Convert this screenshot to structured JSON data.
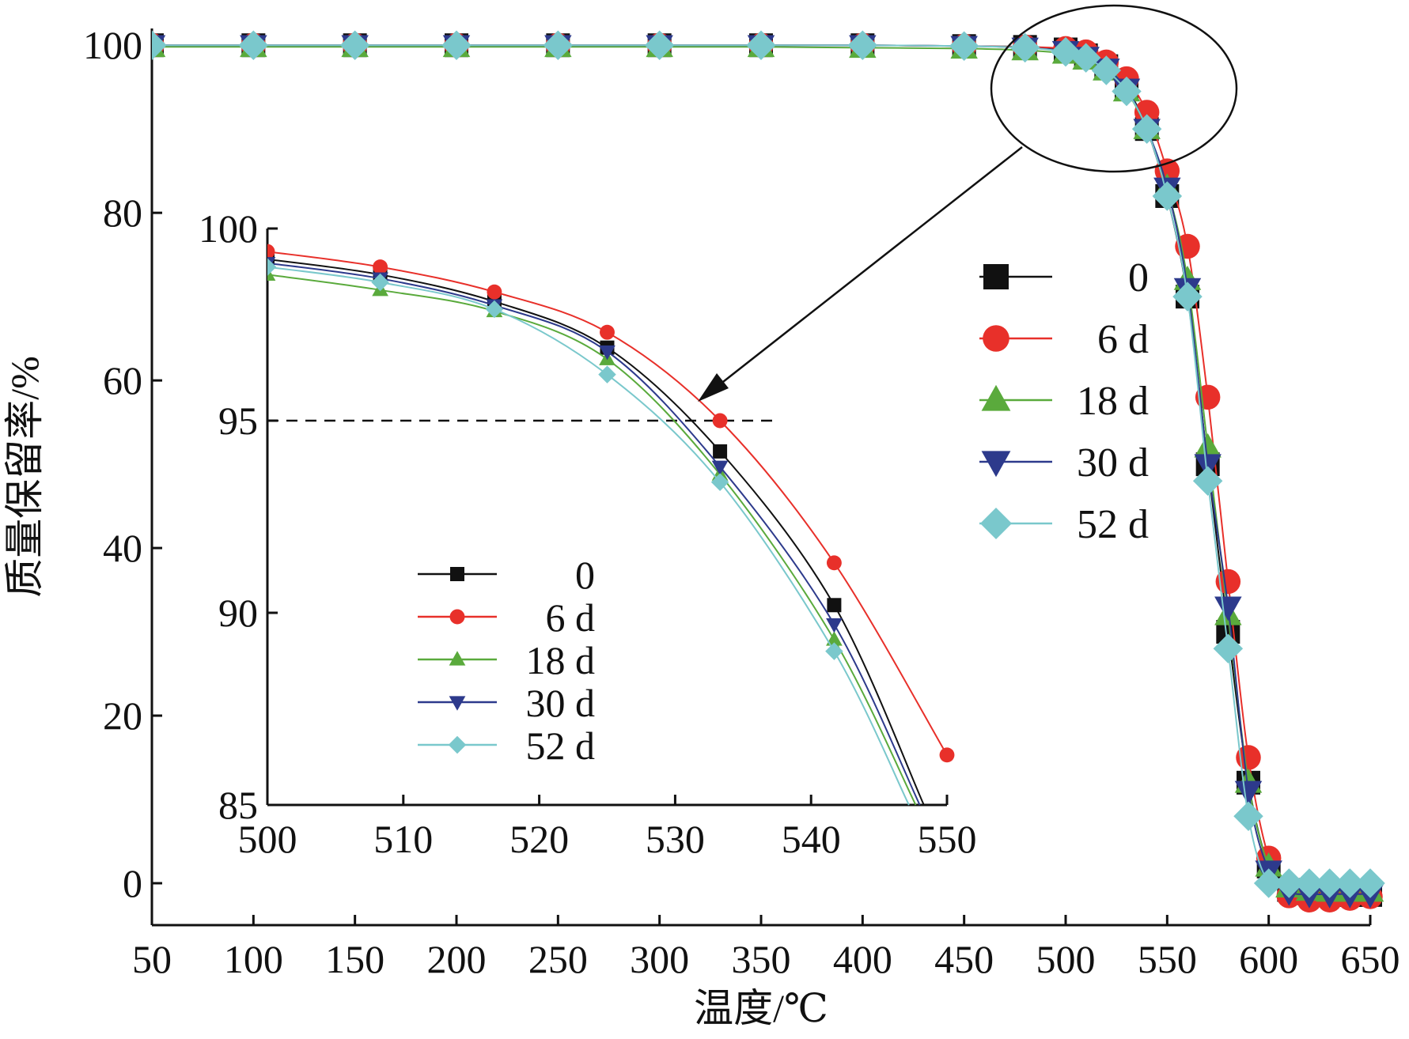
{
  "chart_data": [
    {
      "type": "line",
      "xlabel": "温度/℃",
      "ylabel": "质量保留率/%",
      "xlim": [
        50,
        650
      ],
      "ylim": [
        -5,
        102
      ],
      "xticks": [
        50,
        100,
        150,
        200,
        250,
        300,
        350,
        400,
        450,
        500,
        550,
        600,
        650
      ],
      "yticks": [
        0,
        20,
        40,
        60,
        80,
        100
      ],
      "legend_position": "right-middle",
      "series": [
        {
          "name": "0",
          "color": "#111111",
          "marker": "square",
          "x": [
            50,
            100,
            150,
            200,
            250,
            300,
            350,
            400,
            450,
            480,
            500,
            510,
            520,
            530,
            540,
            550,
            560,
            570,
            580,
            590,
            600,
            610,
            620,
            630,
            640,
            650
          ],
          "y": [
            100,
            100,
            100,
            100,
            100,
            100,
            100,
            100,
            99.9,
            99.8,
            99.5,
            98.8,
            97.5,
            95,
            90,
            82,
            70,
            50,
            30,
            12,
            2,
            -0.8,
            -1.2,
            -1.3,
            -1.4,
            -1.4
          ]
        },
        {
          "name": "6 d",
          "color": "#e8302a",
          "marker": "circle",
          "x": [
            50,
            100,
            150,
            200,
            250,
            300,
            350,
            400,
            450,
            480,
            500,
            510,
            520,
            530,
            540,
            550,
            560,
            570,
            580,
            590,
            600,
            610,
            620,
            630,
            640,
            650
          ],
          "y": [
            100,
            100,
            100,
            100,
            100,
            100,
            100,
            100,
            99.9,
            99.8,
            99.6,
            99.2,
            98,
            96,
            92,
            85,
            76,
            58,
            36,
            15,
            3,
            -1.5,
            -2.0,
            -2.0,
            -1.8,
            -1.6
          ]
        },
        {
          "name": "18 d",
          "color": "#5aaa3c",
          "marker": "triangle-up",
          "x": [
            50,
            100,
            150,
            200,
            250,
            300,
            350,
            400,
            450,
            480,
            500,
            510,
            520,
            530,
            540,
            550,
            560,
            570,
            580,
            590,
            600,
            610,
            620,
            630,
            640,
            650
          ],
          "y": [
            99.8,
            99.8,
            99.8,
            99.8,
            99.8,
            99.8,
            99.8,
            99.7,
            99.6,
            99.4,
            99,
            98.3,
            97,
            94.5,
            90,
            83,
            72,
            52,
            32,
            12,
            2,
            -0.5,
            -0.9,
            -1.0,
            -1.0,
            -1.0
          ]
        },
        {
          "name": "30 d",
          "color": "#2d3a8c",
          "marker": "triangle-down",
          "x": [
            50,
            100,
            150,
            200,
            250,
            300,
            350,
            400,
            450,
            480,
            500,
            510,
            520,
            530,
            540,
            550,
            560,
            570,
            580,
            590,
            600,
            610,
            620,
            630,
            640,
            650
          ],
          "y": [
            100,
            100,
            100,
            100,
            100,
            100,
            100,
            100,
            99.9,
            99.7,
            99.3,
            98.6,
            97.2,
            94.8,
            90,
            83,
            71,
            50,
            33,
            11,
            1.5,
            -1.0,
            -1.3,
            -1.3,
            -1.3,
            -1.3
          ]
        },
        {
          "name": "52 d",
          "color": "#7ac8cc",
          "marker": "diamond",
          "x": [
            50,
            100,
            150,
            200,
            250,
            300,
            350,
            400,
            450,
            480,
            500,
            510,
            520,
            530,
            540,
            550,
            560,
            570,
            580,
            590,
            600,
            610,
            620,
            630,
            640,
            650
          ],
          "y": [
            100,
            100,
            100,
            100,
            100,
            100,
            100,
            100,
            99.9,
            99.7,
            99.2,
            98.5,
            97,
            94.5,
            90,
            82,
            70,
            48,
            28,
            8,
            0,
            0,
            0,
            0,
            0,
            0
          ]
        }
      ]
    },
    {
      "type": "line",
      "xlabel": "",
      "ylabel": "",
      "xlim": [
        500,
        550
      ],
      "ylim": [
        85,
        100
      ],
      "xticks": [
        500,
        510,
        520,
        530,
        540,
        550
      ],
      "yticks": [
        85,
        90,
        95,
        100
      ],
      "reference_line_y": 95,
      "legend_position": "bottom-left",
      "series": [
        {
          "name": "0",
          "color": "#111111",
          "marker": "square",
          "x": [
            500,
            508.3,
            516.7,
            525,
            533.3,
            541.7,
            548.3
          ],
          "y": [
            99.2,
            98.8,
            98.1,
            96.9,
            94.2,
            90.2,
            85
          ]
        },
        {
          "name": "6 d",
          "color": "#e8302a",
          "marker": "circle",
          "x": [
            500,
            508.3,
            516.7,
            525,
            533.3,
            541.7,
            550
          ],
          "y": [
            99.4,
            99.0,
            98.35,
            97.3,
            95.0,
            91.3,
            86.3
          ]
        },
        {
          "name": "18 d",
          "color": "#5aaa3c",
          "marker": "triangle-up",
          "x": [
            500,
            508.3,
            516.7,
            525,
            533.3,
            541.7,
            547.7
          ],
          "y": [
            98.8,
            98.4,
            97.85,
            96.6,
            93.6,
            89.3,
            85
          ]
        },
        {
          "name": "30 d",
          "color": "#2d3a8c",
          "marker": "triangle-down",
          "x": [
            500,
            508.3,
            516.7,
            525,
            533.3,
            541.7,
            548
          ],
          "y": [
            99.1,
            98.7,
            98.0,
            96.8,
            93.8,
            89.7,
            85
          ]
        },
        {
          "name": "52 d",
          "color": "#7ac8cc",
          "marker": "diamond",
          "x": [
            500,
            508.3,
            516.7,
            525,
            533.3,
            541.7,
            547.2
          ],
          "y": [
            99.0,
            98.6,
            97.9,
            96.2,
            93.4,
            89.0,
            85
          ]
        }
      ]
    }
  ]
}
